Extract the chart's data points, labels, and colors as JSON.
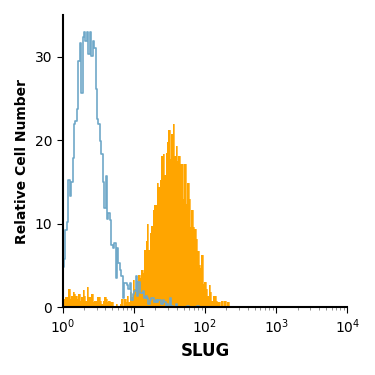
{
  "xlabel": "SLUG",
  "ylabel": "Relative Cell Number",
  "xlim_log": [
    1,
    10000
  ],
  "ylim": [
    0,
    35
  ],
  "yticks": [
    0,
    10,
    20,
    30
  ],
  "blue_color": "#6fa8c8",
  "orange_color": "#FFA500",
  "background_color": "#ffffff",
  "blue_peak_y": 33,
  "orange_peak_y": 22
}
